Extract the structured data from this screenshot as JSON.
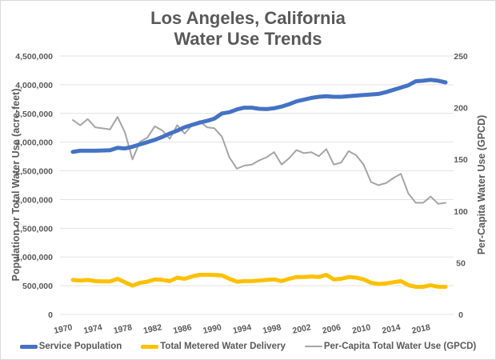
{
  "chart_data": {
    "type": "line",
    "title": [
      "Los Angeles, California",
      "Water Use Trends"
    ],
    "xlabel": "",
    "ylabel": "Population or Total Water Use (acre-feet)",
    "y2label": "Per-Capita Water Use (GPCD)",
    "ylim": [
      0,
      4500000
    ],
    "y2lim": [
      0,
      250
    ],
    "yticks": [
      "0",
      "500,000",
      "1,000,000",
      "1,500,000",
      "2,000,000",
      "2,500,000",
      "3,000,000",
      "3,500,000",
      "4,000,000",
      "4,500,000"
    ],
    "yticks_values": [
      0,
      500000,
      1000000,
      1500000,
      2000000,
      2500000,
      3000000,
      3500000,
      4000000,
      4500000
    ],
    "y2ticks": [
      "0",
      "50",
      "100",
      "150",
      "200",
      "250"
    ],
    "y2ticks_values": [
      0,
      50,
      100,
      150,
      200,
      250
    ],
    "xtick_labels": [
      "1970",
      "1974",
      "1978",
      "1982",
      "1986",
      "1990",
      "1994",
      "1998",
      "2002",
      "2006",
      "2010",
      "2014",
      "2018"
    ],
    "grid": true,
    "legend_position": "bottom",
    "x": [
      1970,
      1971,
      1972,
      1973,
      1974,
      1975,
      1976,
      1977,
      1978,
      1979,
      1980,
      1981,
      1982,
      1983,
      1984,
      1985,
      1986,
      1987,
      1988,
      1989,
      1990,
      1991,
      1992,
      1993,
      1994,
      1995,
      1996,
      1997,
      1998,
      1999,
      2000,
      2001,
      2002,
      2003,
      2004,
      2005,
      2006,
      2007,
      2008,
      2009,
      2010,
      2011,
      2012,
      2013,
      2014,
      2015,
      2016,
      2017,
      2018,
      2019,
      2020
    ],
    "series": [
      {
        "name": "Service Population",
        "axis": "left",
        "color": "#4472c4",
        "values": [
          2830000,
          2850000,
          2850000,
          2850000,
          2855000,
          2860000,
          2900000,
          2890000,
          2920000,
          2960000,
          3000000,
          3040000,
          3090000,
          3150000,
          3200000,
          3260000,
          3300000,
          3340000,
          3370000,
          3410000,
          3500000,
          3520000,
          3570000,
          3600000,
          3600000,
          3580000,
          3575000,
          3590000,
          3620000,
          3660000,
          3710000,
          3740000,
          3770000,
          3790000,
          3800000,
          3790000,
          3790000,
          3800000,
          3810000,
          3820000,
          3830000,
          3840000,
          3870000,
          3910000,
          3950000,
          3990000,
          4060000,
          4070000,
          4085000,
          4070000,
          4040000
        ]
      },
      {
        "name": "Total Metered Water Delivery",
        "axis": "left",
        "color": "#ffc000",
        "values": [
          600000,
          590000,
          600000,
          580000,
          575000,
          575000,
          620000,
          560000,
          500000,
          550000,
          570000,
          610000,
          600000,
          580000,
          640000,
          620000,
          660000,
          690000,
          690000,
          685000,
          680000,
          620000,
          570000,
          580000,
          580000,
          590000,
          600000,
          610000,
          580000,
          620000,
          650000,
          650000,
          660000,
          650000,
          690000,
          610000,
          620000,
          650000,
          640000,
          610000,
          550000,
          530000,
          540000,
          560000,
          580000,
          510000,
          480000,
          480000,
          510000,
          480000,
          480000
        ]
      },
      {
        "name": "Per-Capita Total Water Use (GPCD)",
        "axis": "right",
        "color": "#a5a5a5",
        "values": [
          188,
          183,
          189,
          181,
          180,
          179,
          191,
          176,
          150,
          167,
          171,
          182,
          178,
          170,
          183,
          175,
          183,
          187,
          181,
          180,
          172,
          152,
          141,
          144,
          145,
          149,
          152,
          157,
          145,
          151,
          159,
          156,
          157,
          153,
          160,
          145,
          147,
          158,
          154,
          145,
          128,
          125,
          127,
          132,
          136,
          117,
          108,
          108,
          114,
          107,
          108
        ]
      }
    ]
  }
}
